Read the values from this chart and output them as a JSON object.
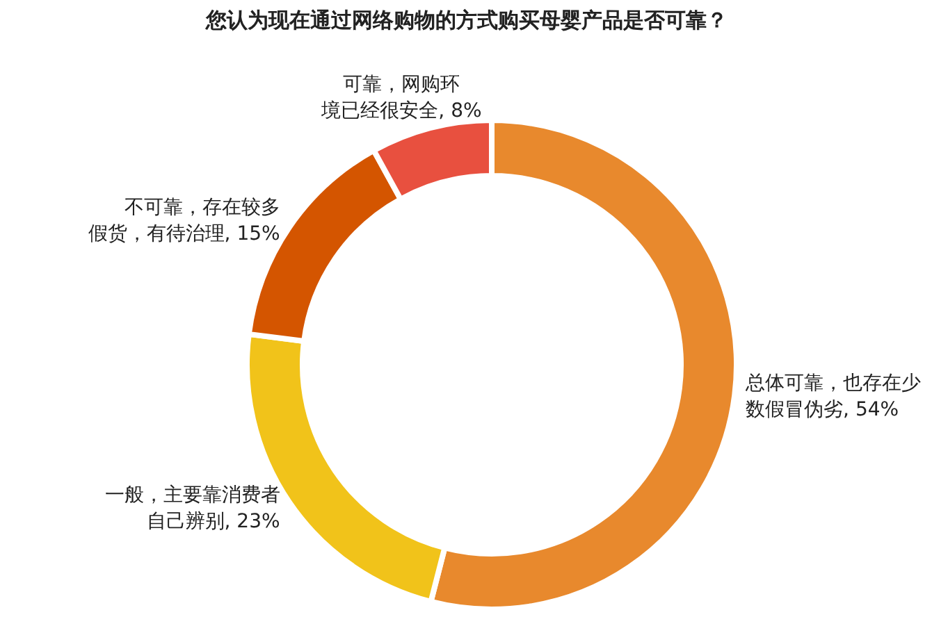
{
  "chart_data": {
    "type": "donut",
    "title": "您认为现在通过网络购物的方式购买母婴产品是否可靠？",
    "categories": [
      "总体可靠，也存在少数假冒伪劣",
      "一般，主要靠消费者自己辨别",
      "不可靠，存在较多假货，有待治理",
      "可靠，网购环境已经很安全"
    ],
    "values": [
      54,
      23,
      15,
      8
    ],
    "value_labels": [
      "54%",
      "23%",
      "15%",
      "8%"
    ],
    "colors": [
      "#e8892d",
      "#f1c31a",
      "#d45500",
      "#e8503f"
    ],
    "legend": false
  }
}
